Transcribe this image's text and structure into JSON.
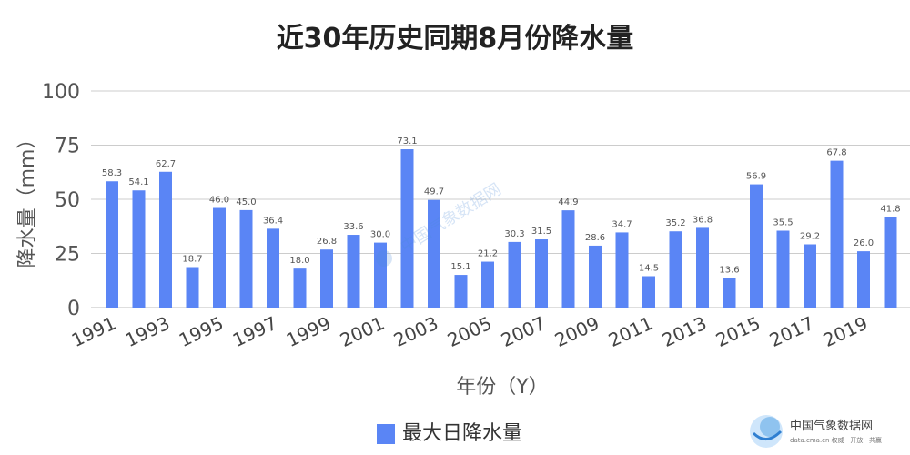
{
  "chart_data": {
    "type": "bar",
    "title": "近30年历史同期8月份降水量",
    "xlabel": "年份（Y）",
    "ylabel": "降水量（mm）",
    "ylim": [
      0,
      100
    ],
    "yticks": [
      0,
      25,
      50,
      75,
      100
    ],
    "grid": true,
    "legend_position": "bottom",
    "categories": [
      "1991",
      "1992",
      "1993",
      "1994",
      "1995",
      "1996",
      "1997",
      "1998",
      "1999",
      "2000",
      "2001",
      "2002",
      "2003",
      "2004",
      "2005",
      "2006",
      "2007",
      "2008",
      "2009",
      "2010",
      "2011",
      "2012",
      "2013",
      "2014",
      "2015",
      "2016",
      "2017",
      "2018",
      "2019",
      "2020"
    ],
    "shown_xtick_labels": [
      "1991",
      "1993",
      "1995",
      "1997",
      "1999",
      "2001",
      "2003",
      "2005",
      "2007",
      "2009",
      "2011",
      "2013",
      "2015",
      "2017",
      "2019"
    ],
    "series": [
      {
        "name": "最大日降水量",
        "color": "#5a85f5",
        "values": [
          58.3,
          54.1,
          62.7,
          18.7,
          46.0,
          45.0,
          36.4,
          18.0,
          26.8,
          33.6,
          30.0,
          73.1,
          49.7,
          15.1,
          21.2,
          30.3,
          31.5,
          44.9,
          28.6,
          34.7,
          14.5,
          35.2,
          36.8,
          13.6,
          56.9,
          35.5,
          29.2,
          67.8,
          26.0,
          41.8
        ],
        "data_labels": [
          "58.3",
          "54.1",
          "62.7",
          "18.7",
          "46.0",
          "45.0",
          "36.4",
          "18.0",
          "26.8",
          "33.6",
          "30.0",
          "73.1",
          "49.7",
          "15.1",
          "21.2",
          "30.3",
          "31.5",
          "44.9",
          "28.6",
          "34.7",
          "14.5",
          "35.2",
          "36.8",
          "13.6",
          "56.9",
          "35.5",
          "29.2",
          "67.8",
          "26.0",
          "41.8"
        ]
      }
    ]
  },
  "watermark": {
    "logo_text": "中国气象数据网",
    "sub_text": "data.cma.cn 权威 · 开放 · 共赢",
    "center_text": "中国气象数据网",
    "icon": "cma-logo-icon"
  }
}
